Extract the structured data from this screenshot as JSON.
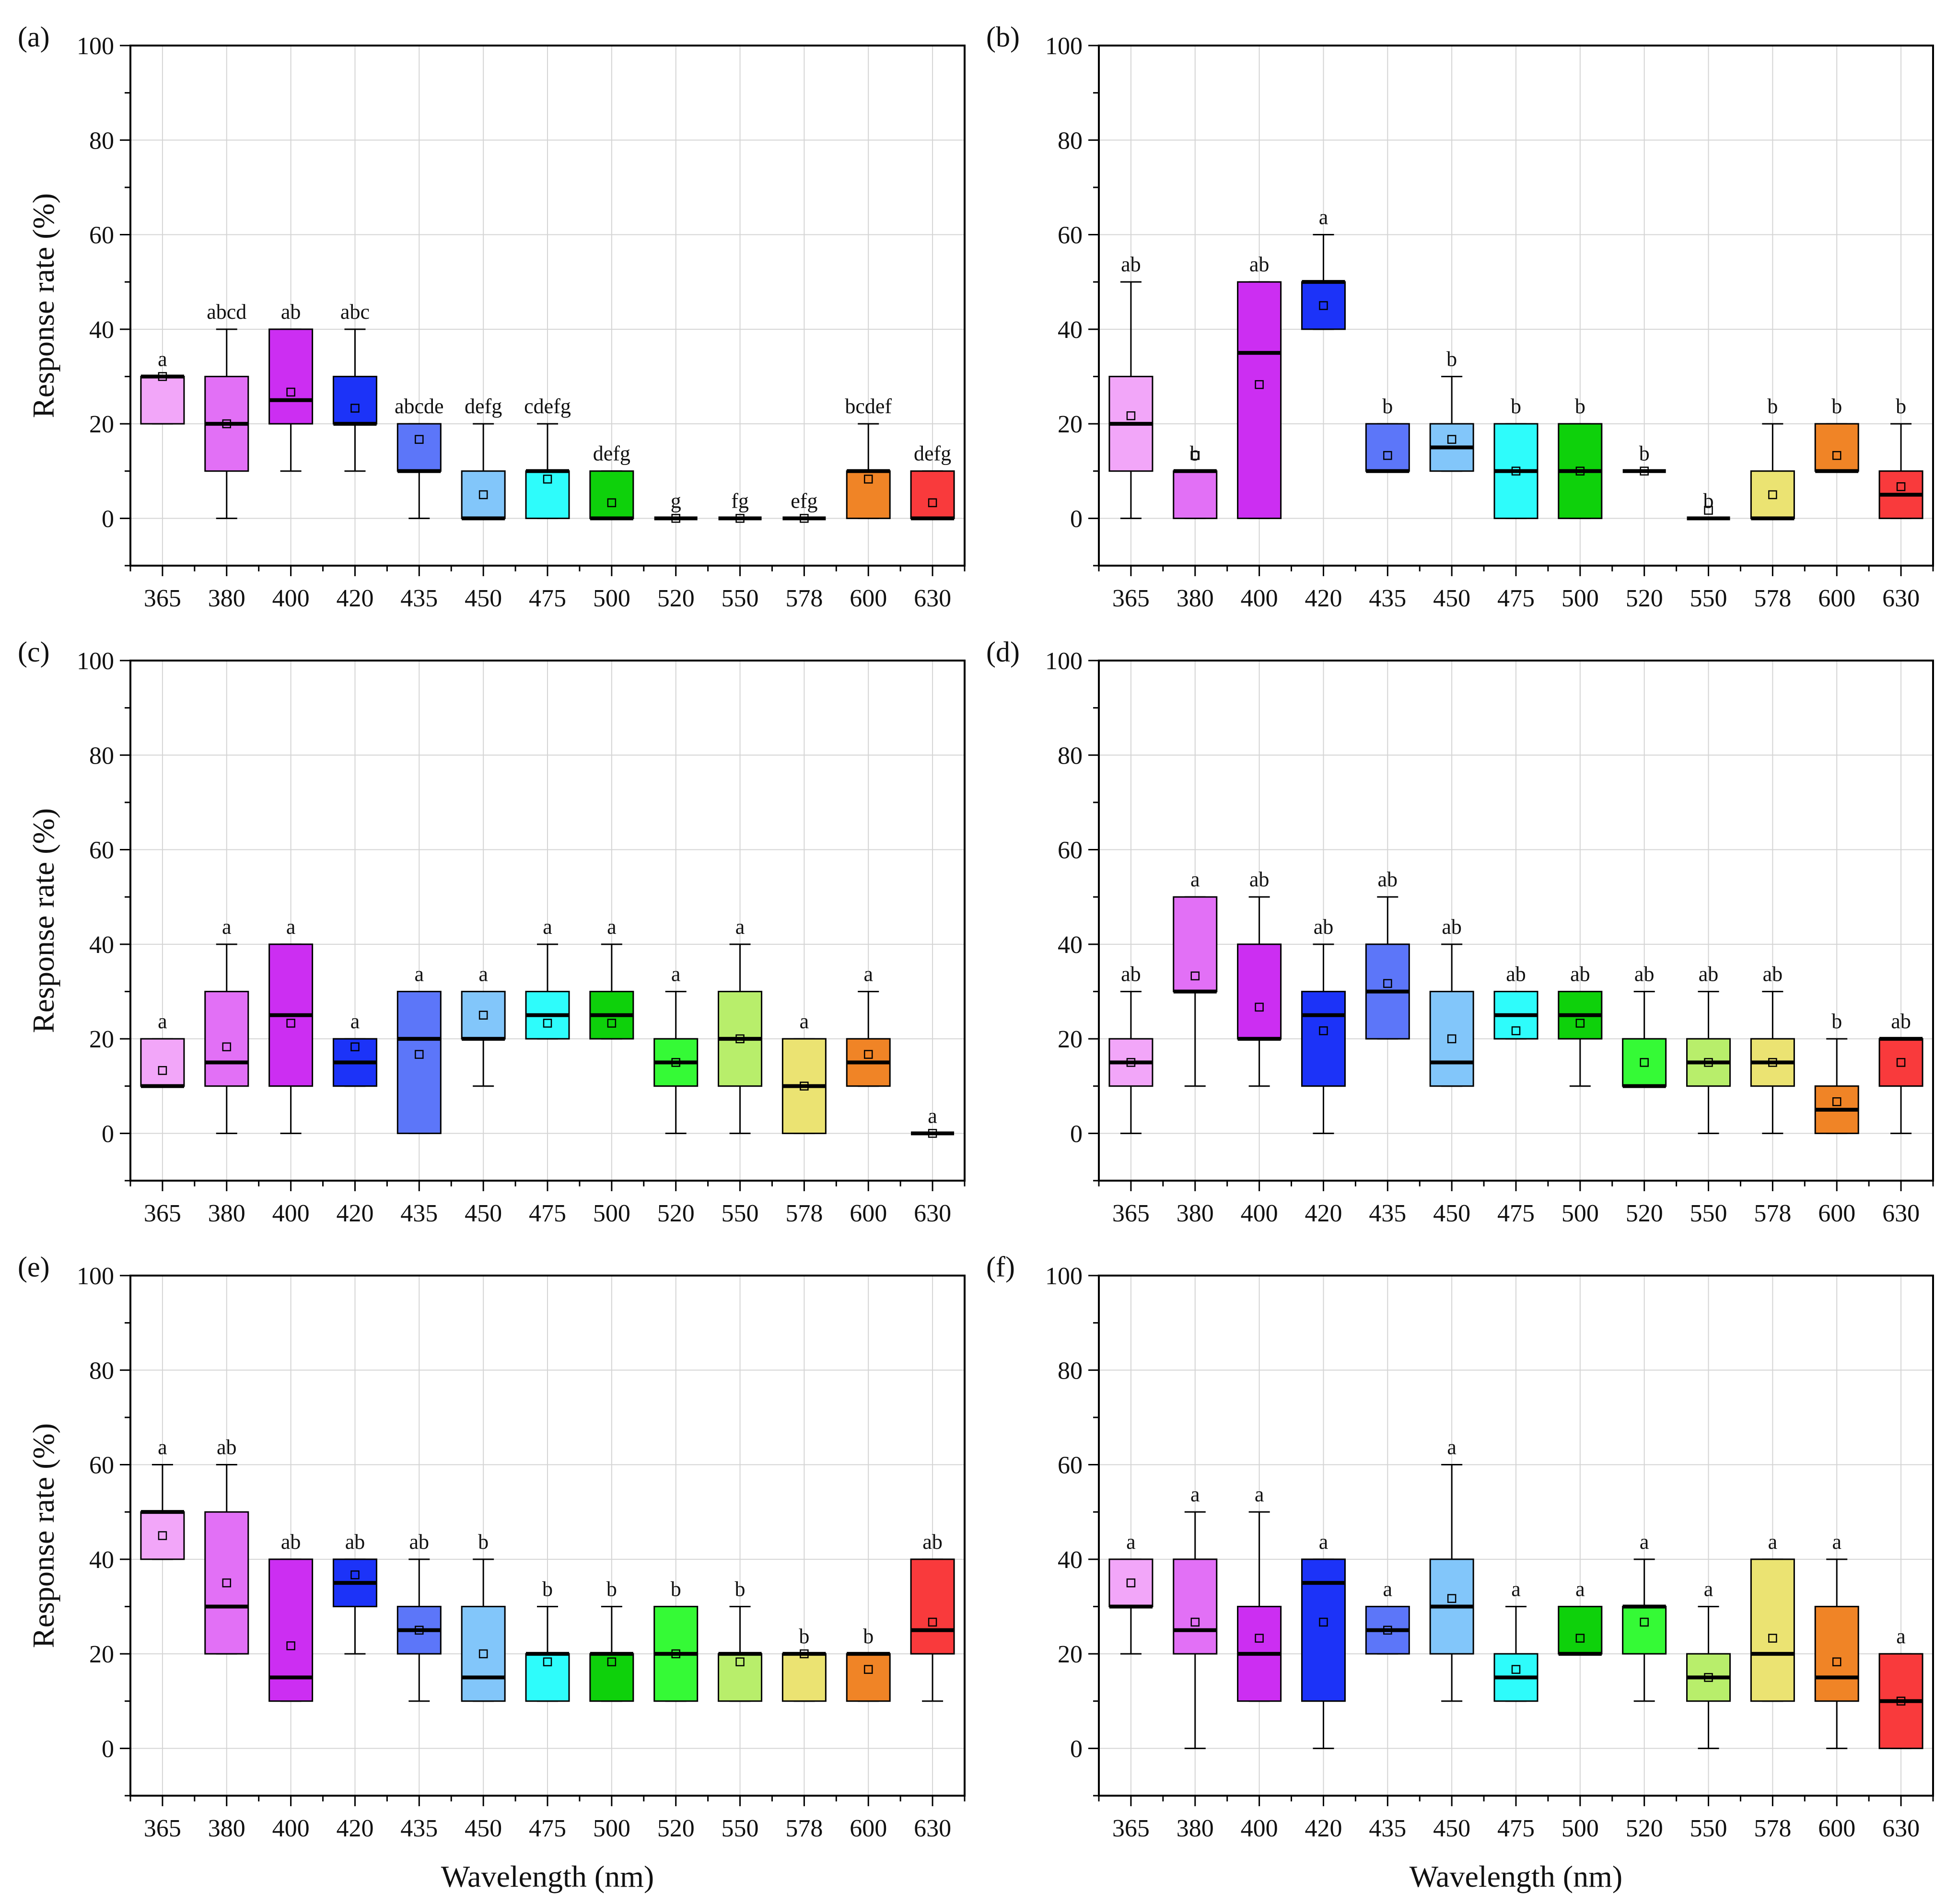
{
  "figure": {
    "ylabel": "Response rate (%)",
    "xlabel": "Wavelength (nm)",
    "ylim": [
      -10,
      100
    ],
    "yticks": [
      0,
      20,
      40,
      60,
      80,
      100
    ]
  },
  "categories": [
    "365",
    "380",
    "400",
    "420",
    "435",
    "450",
    "475",
    "500",
    "520",
    "550",
    "578",
    "600",
    "630"
  ],
  "colors": [
    "#f2a6f9",
    "#e270f6",
    "#cc2ef2",
    "#1c33f8",
    "#5c76f9",
    "#82c6fa",
    "#2efcfb",
    "#0ed10b",
    "#35fa36",
    "#b8ee6b",
    "#ebe372",
    "#f08426",
    "#f93a3c"
  ],
  "chart_data": [
    {
      "type": "box",
      "panel": "(a)",
      "title": "(a)",
      "xlabel": "",
      "ylabel": "Response rate (%)",
      "categories": [
        "365",
        "380",
        "400",
        "420",
        "435",
        "450",
        "475",
        "500",
        "520",
        "550",
        "578",
        "600",
        "630"
      ],
      "ylim": [
        -10,
        100
      ],
      "boxes": [
        {
          "x": "365",
          "min": 20,
          "q1": 20,
          "median": 30,
          "q3": 30,
          "max": 30,
          "mean": 30,
          "letter": "a"
        },
        {
          "x": "380",
          "min": 0,
          "q1": 10,
          "median": 20,
          "q3": 30,
          "max": 40,
          "mean": 20,
          "letter": "abcd"
        },
        {
          "x": "400",
          "min": 10,
          "q1": 20,
          "median": 25,
          "q3": 40,
          "max": 40,
          "mean": 26.7,
          "letter": "ab"
        },
        {
          "x": "420",
          "min": 10,
          "q1": 20,
          "median": 20,
          "q3": 30,
          "max": 40,
          "mean": 23.3,
          "letter": "abc"
        },
        {
          "x": "435",
          "min": 0,
          "q1": 10,
          "median": 10,
          "q3": 20,
          "max": 20,
          "mean": 16.7,
          "letter": "abcde"
        },
        {
          "x": "450",
          "min": 0,
          "q1": 0,
          "median": 0,
          "q3": 10,
          "max": 20,
          "mean": 5,
          "letter": "defg"
        },
        {
          "x": "475",
          "min": 0,
          "q1": 0,
          "median": 10,
          "q3": 10,
          "max": 20,
          "mean": 8.3,
          "letter": "cdefg"
        },
        {
          "x": "500",
          "min": 0,
          "q1": 0,
          "median": 0,
          "q3": 10,
          "max": 10,
          "mean": 3.3,
          "letter": "defg"
        },
        {
          "x": "520",
          "min": 0,
          "q1": 0,
          "median": 0,
          "q3": 0,
          "max": 0,
          "mean": 0,
          "letter": "g"
        },
        {
          "x": "550",
          "min": 0,
          "q1": 0,
          "median": 0,
          "q3": 0,
          "max": 0,
          "mean": 0,
          "letter": "fg"
        },
        {
          "x": "578",
          "min": 0,
          "q1": 0,
          "median": 0,
          "q3": 0,
          "max": 0,
          "mean": 0,
          "letter": "efg"
        },
        {
          "x": "600",
          "min": 0,
          "q1": 0,
          "median": 10,
          "q3": 10,
          "max": 20,
          "mean": 8.3,
          "letter": "bcdef"
        },
        {
          "x": "630",
          "min": 0,
          "q1": 0,
          "median": 0,
          "q3": 10,
          "max": 10,
          "mean": 3.3,
          "letter": "defg"
        }
      ]
    },
    {
      "type": "box",
      "panel": "(b)",
      "title": "(b)",
      "xlabel": "",
      "ylabel": "",
      "categories": [
        "365",
        "380",
        "400",
        "420",
        "435",
        "450",
        "475",
        "500",
        "520",
        "550",
        "578",
        "600",
        "630"
      ],
      "ylim": [
        -10,
        100
      ],
      "boxes": [
        {
          "x": "365",
          "min": 0,
          "q1": 10,
          "median": 20,
          "q3": 30,
          "max": 50,
          "mean": 21.7,
          "letter": "ab"
        },
        {
          "x": "380",
          "min": 0,
          "q1": 0,
          "median": 10,
          "q3": 10,
          "max": 10,
          "mean": 13.3,
          "letter": "b"
        },
        {
          "x": "400",
          "min": 0,
          "q1": 0,
          "median": 35,
          "q3": 50,
          "max": 50,
          "mean": 28.3,
          "letter": "ab"
        },
        {
          "x": "420",
          "min": 40,
          "q1": 40,
          "median": 50,
          "q3": 50,
          "max": 60,
          "mean": 45,
          "letter": "a"
        },
        {
          "x": "435",
          "min": 10,
          "q1": 10,
          "median": 10,
          "q3": 20,
          "max": 20,
          "mean": 13.3,
          "letter": "b"
        },
        {
          "x": "450",
          "min": 10,
          "q1": 10,
          "median": 15,
          "q3": 20,
          "max": 30,
          "mean": 16.7,
          "letter": "b"
        },
        {
          "x": "475",
          "min": 0,
          "q1": 0,
          "median": 10,
          "q3": 20,
          "max": 20,
          "mean": 10,
          "letter": "b"
        },
        {
          "x": "500",
          "min": 0,
          "q1": 0,
          "median": 10,
          "q3": 20,
          "max": 20,
          "mean": 10,
          "letter": "b"
        },
        {
          "x": "520",
          "min": 10,
          "q1": 10,
          "median": 10,
          "q3": 10,
          "max": 10,
          "mean": 10,
          "letter": "b"
        },
        {
          "x": "550",
          "min": 0,
          "q1": 0,
          "median": 0,
          "q3": 0,
          "max": 0,
          "mean": 1.7,
          "letter": "b"
        },
        {
          "x": "578",
          "min": 0,
          "q1": 0,
          "median": 0,
          "q3": 10,
          "max": 20,
          "mean": 5,
          "letter": "b"
        },
        {
          "x": "600",
          "min": 10,
          "q1": 10,
          "median": 10,
          "q3": 20,
          "max": 20,
          "mean": 13.3,
          "letter": "b"
        },
        {
          "x": "630",
          "min": 0,
          "q1": 0,
          "median": 5,
          "q3": 10,
          "max": 20,
          "mean": 6.7,
          "letter": "b"
        }
      ]
    },
    {
      "type": "box",
      "panel": "(c)",
      "title": "(c)",
      "xlabel": "",
      "ylabel": "Response rate (%)",
      "categories": [
        "365",
        "380",
        "400",
        "420",
        "435",
        "450",
        "475",
        "500",
        "520",
        "550",
        "578",
        "600",
        "630"
      ],
      "ylim": [
        -10,
        100
      ],
      "boxes": [
        {
          "x": "365",
          "min": 10,
          "q1": 10,
          "median": 10,
          "q3": 20,
          "max": 20,
          "mean": 13.3,
          "letter": "a"
        },
        {
          "x": "380",
          "min": 0,
          "q1": 10,
          "median": 15,
          "q3": 30,
          "max": 40,
          "mean": 18.3,
          "letter": "a"
        },
        {
          "x": "400",
          "min": 0,
          "q1": 10,
          "median": 25,
          "q3": 40,
          "max": 40,
          "mean": 23.3,
          "letter": "a"
        },
        {
          "x": "420",
          "min": 10,
          "q1": 10,
          "median": 15,
          "q3": 20,
          "max": 20,
          "mean": 18.3,
          "letter": "a"
        },
        {
          "x": "435",
          "min": 0,
          "q1": 0,
          "median": 20,
          "q3": 30,
          "max": 30,
          "mean": 16.7,
          "letter": "a"
        },
        {
          "x": "450",
          "min": 10,
          "q1": 20,
          "median": 20,
          "q3": 30,
          "max": 30,
          "mean": 25,
          "letter": "a"
        },
        {
          "x": "475",
          "min": 20,
          "q1": 20,
          "median": 25,
          "q3": 30,
          "max": 40,
          "mean": 23.3,
          "letter": "a"
        },
        {
          "x": "500",
          "min": 20,
          "q1": 20,
          "median": 25,
          "q3": 30,
          "max": 40,
          "mean": 23.3,
          "letter": "a"
        },
        {
          "x": "520",
          "min": 0,
          "q1": 10,
          "median": 15,
          "q3": 20,
          "max": 30,
          "mean": 15,
          "letter": "a"
        },
        {
          "x": "550",
          "min": 0,
          "q1": 10,
          "median": 20,
          "q3": 30,
          "max": 40,
          "mean": 20,
          "letter": "a"
        },
        {
          "x": "578",
          "min": 0,
          "q1": 0,
          "median": 10,
          "q3": 20,
          "max": 20,
          "mean": 10,
          "letter": "a"
        },
        {
          "x": "600",
          "min": 10,
          "q1": 10,
          "median": 15,
          "q3": 20,
          "max": 30,
          "mean": 16.7,
          "letter": "a"
        },
        {
          "x": "630",
          "min": 0,
          "q1": 0,
          "median": 0,
          "q3": 0,
          "max": 0,
          "mean": 0,
          "letter": "a"
        }
      ]
    },
    {
      "type": "box",
      "panel": "(d)",
      "title": "(d)",
      "xlabel": "",
      "ylabel": "",
      "categories": [
        "365",
        "380",
        "400",
        "420",
        "435",
        "450",
        "475",
        "500",
        "520",
        "550",
        "578",
        "600",
        "630"
      ],
      "ylim": [
        -10,
        100
      ],
      "boxes": [
        {
          "x": "365",
          "min": 0,
          "q1": 10,
          "median": 15,
          "q3": 20,
          "max": 30,
          "mean": 15,
          "letter": "ab"
        },
        {
          "x": "380",
          "min": 10,
          "q1": 30,
          "median": 30,
          "q3": 50,
          "max": 50,
          "mean": 33.3,
          "letter": "a"
        },
        {
          "x": "400",
          "min": 10,
          "q1": 20,
          "median": 20,
          "q3": 40,
          "max": 50,
          "mean": 26.7,
          "letter": "ab"
        },
        {
          "x": "420",
          "min": 0,
          "q1": 10,
          "median": 25,
          "q3": 30,
          "max": 40,
          "mean": 21.7,
          "letter": "ab"
        },
        {
          "x": "435",
          "min": 20,
          "q1": 20,
          "median": 30,
          "q3": 40,
          "max": 50,
          "mean": 31.7,
          "letter": "ab"
        },
        {
          "x": "450",
          "min": 10,
          "q1": 10,
          "median": 15,
          "q3": 30,
          "max": 40,
          "mean": 20,
          "letter": "ab"
        },
        {
          "x": "475",
          "min": 20,
          "q1": 20,
          "median": 25,
          "q3": 30,
          "max": 30,
          "mean": 21.7,
          "letter": "ab"
        },
        {
          "x": "500",
          "min": 10,
          "q1": 20,
          "median": 25,
          "q3": 30,
          "max": 30,
          "mean": 23.3,
          "letter": "ab"
        },
        {
          "x": "520",
          "min": 10,
          "q1": 10,
          "median": 10,
          "q3": 20,
          "max": 30,
          "mean": 15,
          "letter": "ab"
        },
        {
          "x": "550",
          "min": 0,
          "q1": 10,
          "median": 15,
          "q3": 20,
          "max": 30,
          "mean": 15,
          "letter": "ab"
        },
        {
          "x": "578",
          "min": 0,
          "q1": 10,
          "median": 15,
          "q3": 20,
          "max": 30,
          "mean": 15,
          "letter": "ab"
        },
        {
          "x": "600",
          "min": 0,
          "q1": 0,
          "median": 5,
          "q3": 10,
          "max": 20,
          "mean": 6.7,
          "letter": "b"
        },
        {
          "x": "630",
          "min": 0,
          "q1": 10,
          "median": 20,
          "q3": 20,
          "max": 20,
          "mean": 15,
          "letter": "ab"
        }
      ]
    },
    {
      "type": "box",
      "panel": "(e)",
      "title": "(e)",
      "xlabel": "Wavelength (nm)",
      "ylabel": "Response rate (%)",
      "categories": [
        "365",
        "380",
        "400",
        "420",
        "435",
        "450",
        "475",
        "500",
        "520",
        "550",
        "578",
        "600",
        "630"
      ],
      "ylim": [
        -10,
        100
      ],
      "boxes": [
        {
          "x": "365",
          "min": 40,
          "q1": 40,
          "median": 50,
          "q3": 50,
          "max": 60,
          "mean": 45,
          "letter": "a"
        },
        {
          "x": "380",
          "min": 20,
          "q1": 20,
          "median": 30,
          "q3": 50,
          "max": 60,
          "mean": 35,
          "letter": "ab"
        },
        {
          "x": "400",
          "min": 10,
          "q1": 10,
          "median": 15,
          "q3": 40,
          "max": 40,
          "mean": 21.7,
          "letter": "ab"
        },
        {
          "x": "420",
          "min": 20,
          "q1": 30,
          "median": 35,
          "q3": 40,
          "max": 40,
          "mean": 36.7,
          "letter": "ab"
        },
        {
          "x": "435",
          "min": 10,
          "q1": 20,
          "median": 25,
          "q3": 30,
          "max": 40,
          "mean": 25,
          "letter": "ab"
        },
        {
          "x": "450",
          "min": 10,
          "q1": 10,
          "median": 15,
          "q3": 30,
          "max": 40,
          "mean": 20,
          "letter": "b"
        },
        {
          "x": "475",
          "min": 10,
          "q1": 10,
          "median": 20,
          "q3": 20,
          "max": 30,
          "mean": 18.3,
          "letter": "b"
        },
        {
          "x": "500",
          "min": 10,
          "q1": 10,
          "median": 20,
          "q3": 20,
          "max": 30,
          "mean": 18.3,
          "letter": "b"
        },
        {
          "x": "520",
          "min": 10,
          "q1": 10,
          "median": 20,
          "q3": 30,
          "max": 30,
          "mean": 20,
          "letter": "b"
        },
        {
          "x": "550",
          "min": 10,
          "q1": 10,
          "median": 20,
          "q3": 20,
          "max": 30,
          "mean": 18.3,
          "letter": "b"
        },
        {
          "x": "578",
          "min": 10,
          "q1": 10,
          "median": 20,
          "q3": 20,
          "max": 20,
          "mean": 20,
          "letter": "b"
        },
        {
          "x": "600",
          "min": 10,
          "q1": 10,
          "median": 20,
          "q3": 20,
          "max": 20,
          "mean": 16.7,
          "letter": "b"
        },
        {
          "x": "630",
          "min": 10,
          "q1": 20,
          "median": 25,
          "q3": 40,
          "max": 40,
          "mean": 26.7,
          "letter": "ab"
        }
      ]
    },
    {
      "type": "box",
      "panel": "(f)",
      "title": "(f)",
      "xlabel": "Wavelength (nm)",
      "ylabel": "",
      "categories": [
        "365",
        "380",
        "400",
        "420",
        "435",
        "450",
        "475",
        "500",
        "520",
        "550",
        "578",
        "600",
        "630"
      ],
      "ylim": [
        -10,
        100
      ],
      "boxes": [
        {
          "x": "365",
          "min": 20,
          "q1": 30,
          "median": 30,
          "q3": 40,
          "max": 40,
          "mean": 35,
          "letter": "a"
        },
        {
          "x": "380",
          "min": 0,
          "q1": 20,
          "median": 25,
          "q3": 40,
          "max": 50,
          "mean": 26.7,
          "letter": "a"
        },
        {
          "x": "400",
          "min": 10,
          "q1": 10,
          "median": 20,
          "q3": 30,
          "max": 50,
          "mean": 23.3,
          "letter": "a"
        },
        {
          "x": "420",
          "min": 0,
          "q1": 10,
          "median": 35,
          "q3": 40,
          "max": 40,
          "mean": 26.7,
          "letter": "a"
        },
        {
          "x": "435",
          "min": 20,
          "q1": 20,
          "median": 25,
          "q3": 30,
          "max": 30,
          "mean": 25,
          "letter": "a"
        },
        {
          "x": "450",
          "min": 10,
          "q1": 20,
          "median": 30,
          "q3": 40,
          "max": 60,
          "mean": 31.7,
          "letter": "a"
        },
        {
          "x": "475",
          "min": 10,
          "q1": 10,
          "median": 15,
          "q3": 20,
          "max": 30,
          "mean": 16.7,
          "letter": "a"
        },
        {
          "x": "500",
          "min": 20,
          "q1": 20,
          "median": 20,
          "q3": 30,
          "max": 30,
          "mean": 23.3,
          "letter": "a"
        },
        {
          "x": "520",
          "min": 10,
          "q1": 20,
          "median": 30,
          "q3": 30,
          "max": 40,
          "mean": 26.7,
          "letter": "a"
        },
        {
          "x": "550",
          "min": 0,
          "q1": 10,
          "median": 15,
          "q3": 20,
          "max": 30,
          "mean": 15,
          "letter": "a"
        },
        {
          "x": "578",
          "min": 10,
          "q1": 10,
          "median": 20,
          "q3": 40,
          "max": 40,
          "mean": 23.3,
          "letter": "a"
        },
        {
          "x": "600",
          "min": 0,
          "q1": 10,
          "median": 15,
          "q3": 30,
          "max": 40,
          "mean": 18.3,
          "letter": "a"
        },
        {
          "x": "630",
          "min": 0,
          "q1": 0,
          "median": 10,
          "q3": 20,
          "max": 20,
          "mean": 10,
          "letter": "a"
        }
      ]
    }
  ]
}
